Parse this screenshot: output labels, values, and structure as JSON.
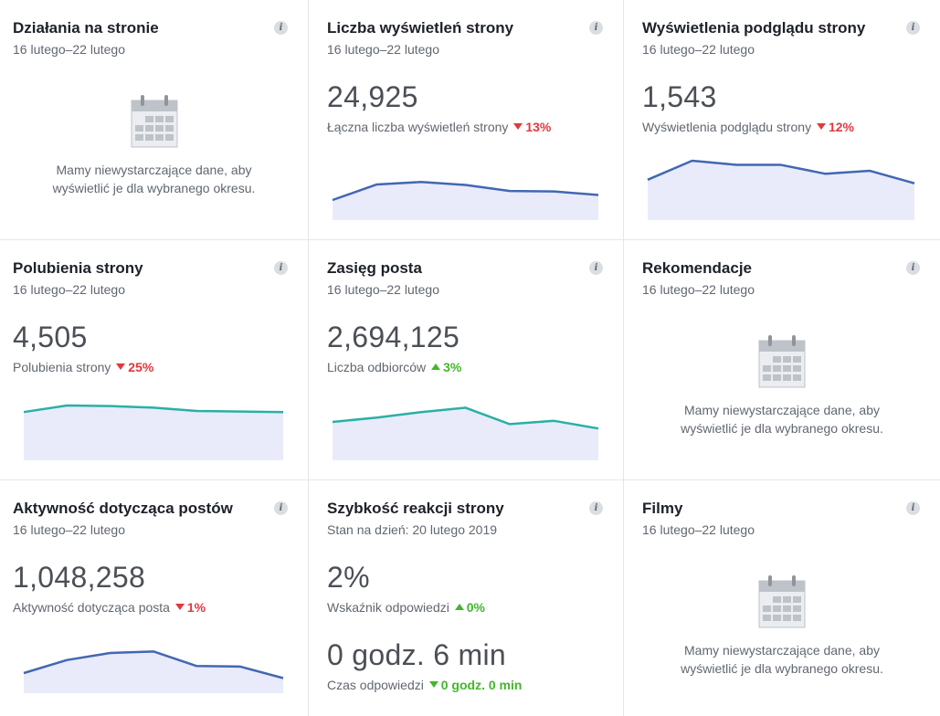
{
  "cards": [
    {
      "title": "Działania na stronie",
      "date": "16 lutego–22 lutego",
      "no_data": "Mamy niewystarczające dane, aby wyświetlić je dla wybranego okresu."
    },
    {
      "title": "Liczba wyświetleń strony",
      "date": "16 lutego–22 lutego",
      "value": "24,925",
      "label": "Łączna liczba wyświetleń strony",
      "change": "13%",
      "direction": "down",
      "trend": [
        40,
        71,
        76,
        70,
        58,
        57,
        50
      ],
      "trend_color": "#4267b2"
    },
    {
      "title": "Wyświetlenia podglądu strony",
      "date": "16 lutego–22 lutego",
      "value": "1,543",
      "label": "Wyświetlenia podglądu strony",
      "change": "12%",
      "direction": "down",
      "trend": [
        68,
        100,
        93,
        93,
        78,
        83,
        62
      ],
      "trend_color": "#4267b2"
    },
    {
      "title": "Polubienia strony",
      "date": "16 lutego–22 lutego",
      "value": "4,505",
      "label": "Polubienia strony",
      "change": "25%",
      "direction": "down",
      "trend": [
        88,
        100,
        99,
        96,
        90,
        89,
        88
      ],
      "trend_color": "#2ab0a4"
    },
    {
      "title": "Zasięg posta",
      "date": "16 lutego–22 lutego",
      "value": "2,694,125",
      "label": "Liczba odbiorców",
      "change": "3%",
      "direction": "up",
      "trend": [
        70,
        78,
        88,
        96,
        66,
        72,
        58
      ],
      "trend_color": "#2ab0a4"
    },
    {
      "title": "Rekomendacje",
      "date": "16 lutego–22 lutego",
      "no_data": "Mamy niewystarczające dane, aby wyświetlić je dla wybranego okresu."
    },
    {
      "title": "Aktywność dotycząca postów",
      "date": "16 lutego–22 lutego",
      "value": "1,048,258",
      "label": "Aktywność dotycząca posta",
      "change": "1%",
      "direction": "down",
      "trend": [
        40,
        66,
        80,
        83,
        54,
        53,
        30
      ],
      "trend_color": "#4267b2"
    },
    {
      "title": "Szybkość reakcji strony",
      "date": "Stan na dzień: 20 lutego 2019",
      "value": "2%",
      "label": "Wskaźnik odpowiedzi",
      "change": "0%",
      "direction": "up",
      "value2": "0 godz. 6 min",
      "label2": "Czas odpowiedzi",
      "change2": "0 godz. 0 min",
      "direction2": "down"
    },
    {
      "title": "Filmy",
      "date": "16 lutego–22 lutego",
      "no_data": "Mamy niewystarczające dane, aby wyświetlić je dla wybranego okresu."
    }
  ],
  "icons": {
    "info": "i",
    "calendar": "calendar-icon"
  },
  "colors": {
    "down": "#e0393e",
    "up": "#42b72a",
    "fill": "#e9ebfa"
  }
}
